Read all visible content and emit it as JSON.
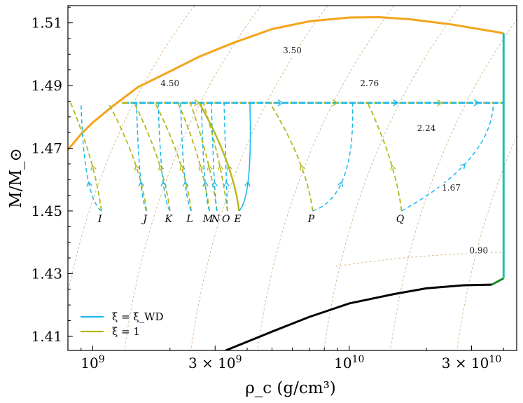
{
  "chart_data": {
    "type": "line",
    "xlabel": "ρ_c (g/cm³)",
    "ylabel": "M/M_⊙",
    "xscale": "log",
    "xlim": [
      800000000,
      45000000000
    ],
    "ylim": [
      1.4055,
      1.5155
    ],
    "x_ticks": [
      {
        "value": 1000000000,
        "base": "10",
        "exp": "9"
      },
      {
        "value": 3000000000,
        "base": "3 × 10",
        "exp": "9"
      },
      {
        "value": 10000000000,
        "base": "10",
        "exp": "10"
      },
      {
        "value": 30000000000,
        "base": "3 × 10",
        "exp": "10"
      }
    ],
    "y_ticks": [
      "1.41",
      "1.43",
      "1.45",
      "1.47",
      "1.49",
      "1.51"
    ],
    "colors": {
      "xi_wd": "#1ab8ec",
      "xi_one": "#b5b81a",
      "envelope": "#f5a41c",
      "right_edge": "#1ebfb0",
      "bottom_curve": "#000000",
      "green": "#1a8a2a",
      "contours": "#d8b88e"
    },
    "legend": [
      {
        "label": "ξ = ξ_WD",
        "color": "#1ab8ec",
        "dashed": false
      },
      {
        "label": "ξ = 1",
        "color": "#b5b81a",
        "dashed": false
      }
    ],
    "envelope": {
      "name": "upper envelope",
      "x": [
        800000000,
        900000000,
        1000000000,
        1200000000,
        1500000000,
        2000000000,
        2600000000,
        3500000000,
        5000000000,
        7000000000,
        10000000000,
        13000000000,
        17000000000,
        25000000000,
        40000000000
      ],
      "y": [
        1.4695,
        1.4745,
        1.4782,
        1.4835,
        1.4895,
        1.4945,
        1.4992,
        1.5035,
        1.508,
        1.5105,
        1.5117,
        1.5118,
        1.5112,
        1.5095,
        1.5067
      ]
    },
    "bottom_curve": {
      "name": "lower boundary",
      "x": [
        3300000000,
        5000000000,
        7000000000,
        10000000000,
        15000000000,
        20000000000,
        28000000000,
        36000000000
      ],
      "y": [
        1.4055,
        1.4115,
        1.4162,
        1.4205,
        1.4235,
        1.4253,
        1.4263,
        1.4265
      ]
    },
    "right_edge": {
      "x": 40000000000,
      "y_from": 1.4285,
      "y_to": 1.5067
    },
    "green_segment": {
      "x": [
        36000000000,
        40000000000
      ],
      "y": [
        1.4265,
        1.4285
      ]
    },
    "plateau_mass": 1.4845,
    "plateau_start_x": 1300000000,
    "plateau_end_x": 40000000000,
    "contours": [
      {
        "label": "4.50",
        "label_x": 2000000000,
        "label_y": 1.4898
      },
      {
        "label": "3.50",
        "label_x": 6000000000,
        "label_y": 1.5003
      },
      {
        "label": "2.76",
        "label_x": 12000000000,
        "label_y": 1.4898
      },
      {
        "label": "2.24",
        "label_x": 20000000000,
        "label_y": 1.4755
      },
      {
        "label": "1.67",
        "label_x": 25000000000,
        "label_y": 1.4565
      },
      {
        "label": "0.90",
        "label_x": 32000000000,
        "label_y": 1.4365
      }
    ],
    "trajectories": [
      {
        "label": "I",
        "start_x": 1080000000,
        "xi_wd_top_x": 900000000,
        "xi_one_top_x": 820000000
      },
      {
        "label": "J",
        "start_x": 1620000000,
        "xi_wd_top_x": 1480000000,
        "xi_one_top_x": 1150000000
      },
      {
        "label": "K",
        "start_x": 2000000000,
        "xi_wd_top_x": 1800000000,
        "xi_one_top_x": 1450000000
      },
      {
        "label": "L",
        "start_x": 2420000000,
        "xi_wd_top_x": 2200000000,
        "xi_one_top_x": 1750000000
      },
      {
        "label": "M",
        "start_x": 2850000000,
        "xi_wd_top_x": 2650000000,
        "xi_one_top_x": 2150000000
      },
      {
        "label": "N",
        "start_x": 3050000000,
        "xi_wd_top_x": 2900000000,
        "xi_one_top_x": 2400000000
      },
      {
        "label": "O",
        "start_x": 3350000000,
        "xi_wd_top_x": 3250000000,
        "xi_one_top_x": 2700000000
      },
      {
        "label": "E",
        "start_x": 3720000000,
        "xi_wd_top_x": 4100000000,
        "xi_one_top_x": 2600000000
      },
      {
        "label": "P",
        "start_x": 7200000000,
        "xi_wd_top_x": 10300000000,
        "xi_one_top_x": 4900000000
      },
      {
        "label": "Q",
        "start_x": 16000000000,
        "xi_wd_top_x": 36500000000,
        "xi_one_top_x": 11800000000
      }
    ]
  }
}
